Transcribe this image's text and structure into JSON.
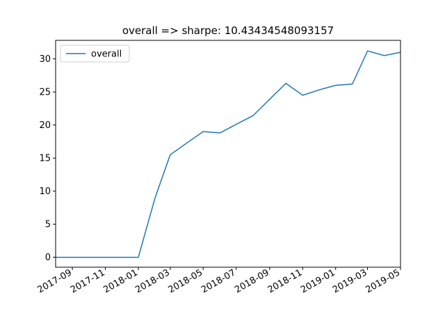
{
  "chart_data": {
    "type": "line",
    "title": "overall => sharpe: 10.43434548093157",
    "xlabel": "",
    "ylabel": "",
    "x_axis_type": "date",
    "xlim": [
      "2017-08-01",
      "2019-05-01"
    ],
    "ylim": [
      -1.5,
      32.8
    ],
    "x_tick_labels": [
      "2017-09",
      "2017-11",
      "2018-01",
      "2018-03",
      "2018-05",
      "2018-07",
      "2018-09",
      "2018-11",
      "2019-01",
      "2019-03",
      "2019-05"
    ],
    "y_tick_labels": [
      "0",
      "5",
      "10",
      "15",
      "20",
      "25",
      "30"
    ],
    "grid": false,
    "legend": {
      "placement": "top-left",
      "entries": [
        "overall"
      ]
    },
    "series": [
      {
        "name": "overall",
        "color": "#1f77b4",
        "x": [
          "2017-08-01",
          "2017-09-01",
          "2017-10-01",
          "2017-11-01",
          "2017-12-01",
          "2018-01-01",
          "2018-02-01",
          "2018-03-01",
          "2018-04-01",
          "2018-05-01",
          "2018-06-01",
          "2018-07-01",
          "2018-08-01",
          "2018-09-01",
          "2018-10-01",
          "2018-11-01",
          "2018-12-01",
          "2019-01-01",
          "2019-02-01",
          "2019-03-01",
          "2019-04-01",
          "2019-05-01"
        ],
        "y": [
          0,
          0,
          0,
          0,
          0,
          0,
          9.0,
          15.5,
          17.3,
          19.0,
          18.8,
          20.1,
          21.4,
          23.9,
          26.3,
          24.5,
          25.3,
          26.0,
          26.2,
          31.2,
          30.5,
          31.0
        ]
      }
    ]
  }
}
